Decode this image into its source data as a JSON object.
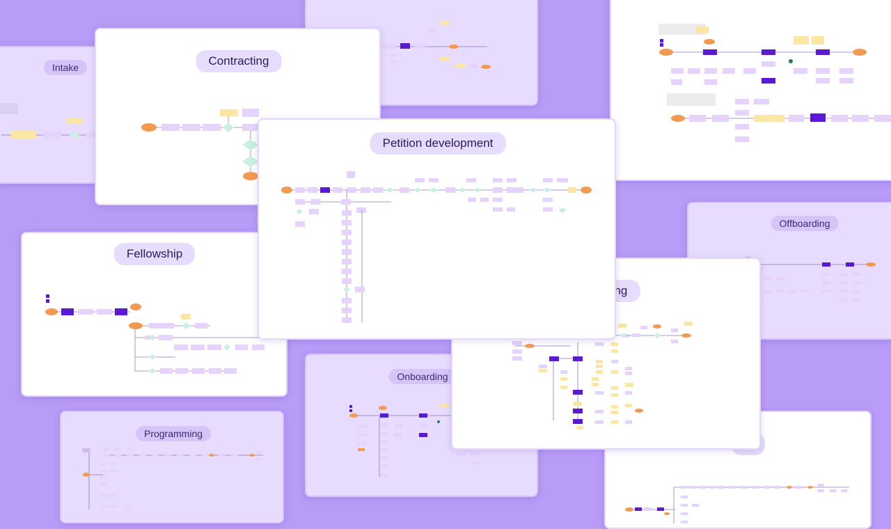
{
  "cards": {
    "intake": "Intake",
    "contracting": "Contracting",
    "petition": "Petition development",
    "fellowship": "Fellowship",
    "offboarding": "Offboarding",
    "onboarding": "Onboarding",
    "programming": "Programming",
    "hiring_partial": "ing",
    "bottom_right_partial": "U"
  },
  "colors": {
    "background": "#b89cf7",
    "node_lavender": "#e5d3fb",
    "node_purple": "#5a1ad1",
    "node_orange": "#f39a52",
    "node_yellow": "#fbe7a3",
    "node_green": "#c9f0e2"
  }
}
